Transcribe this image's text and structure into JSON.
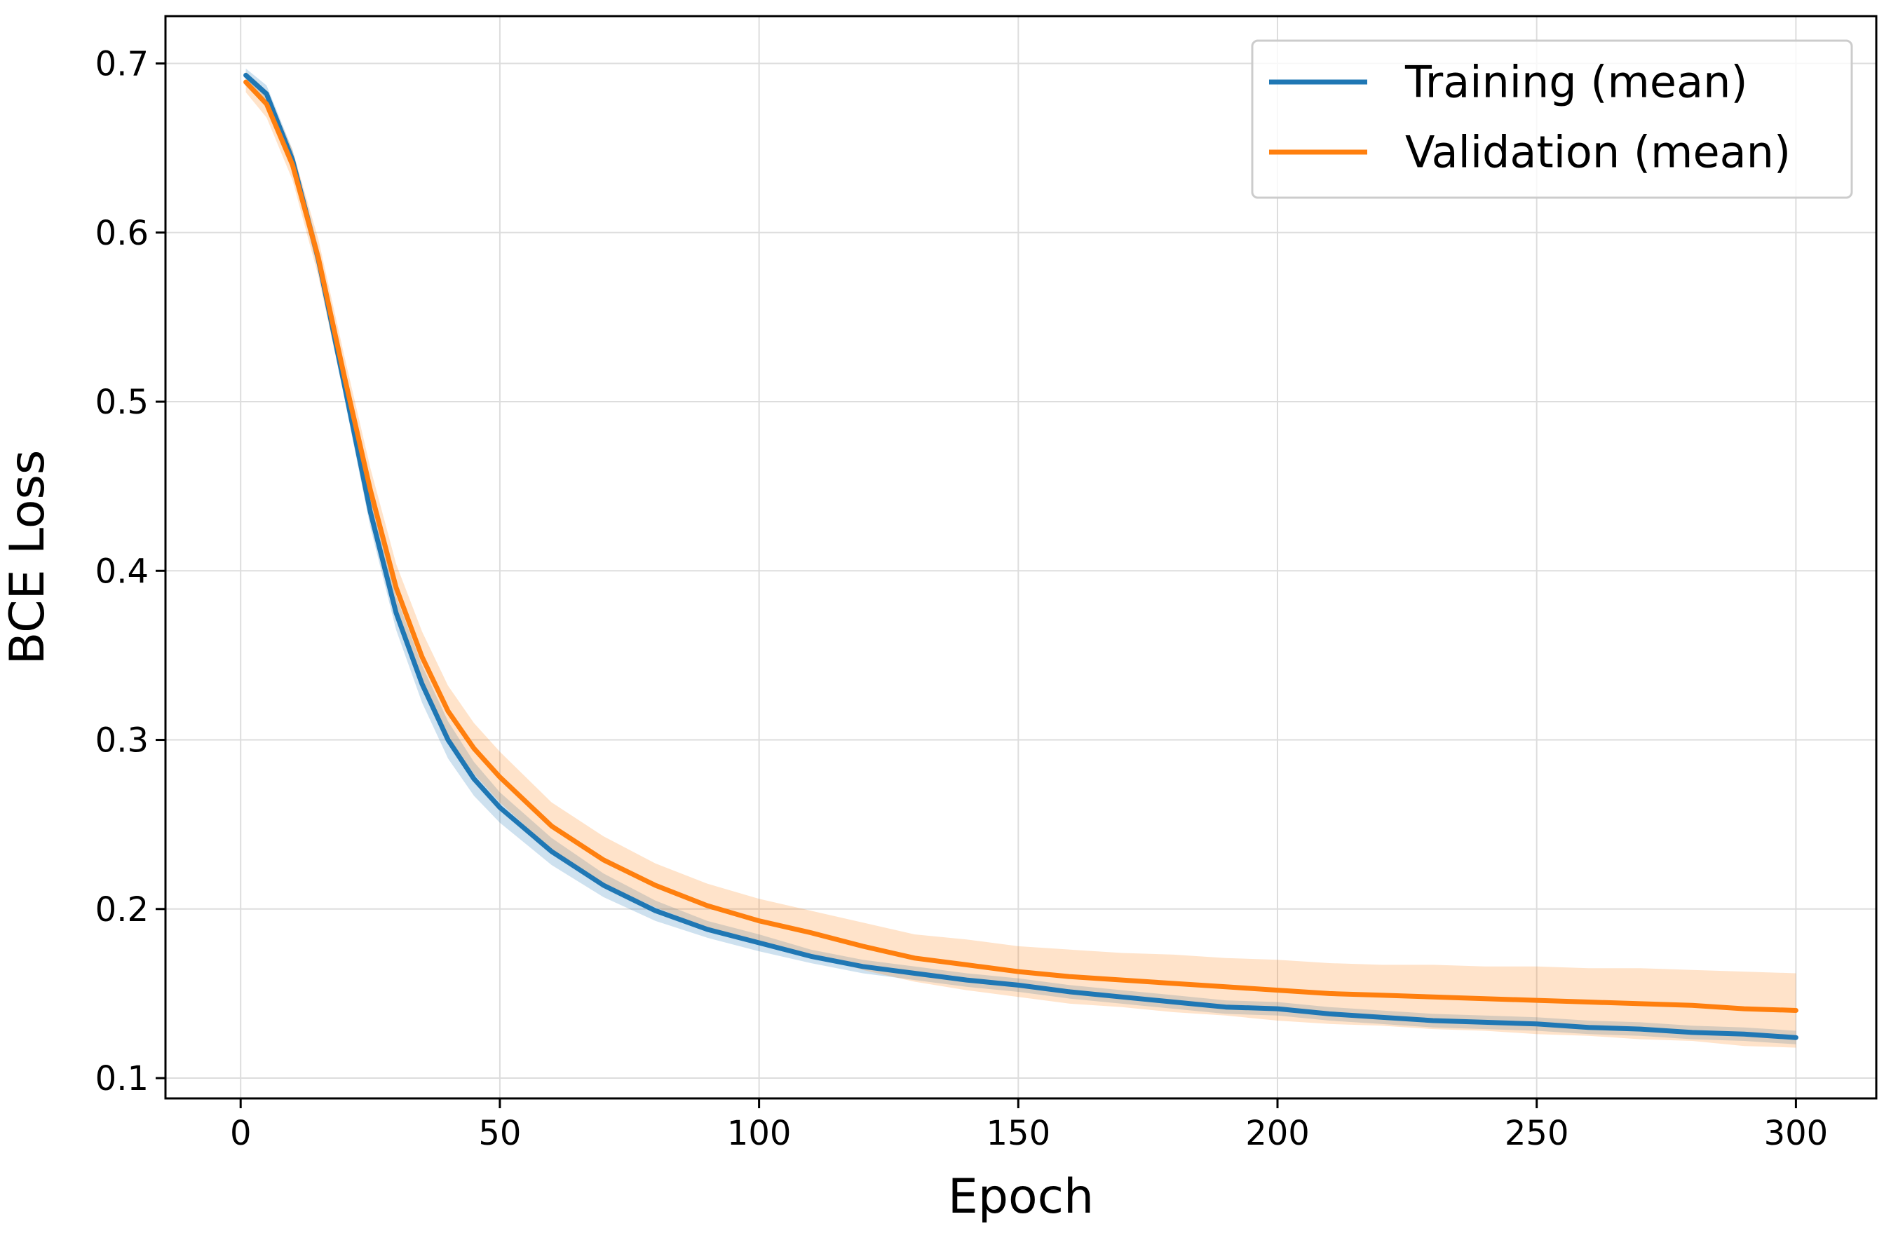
{
  "chart_data": {
    "type": "line",
    "title": "",
    "xlabel": "Epoch",
    "ylabel": "BCE Loss",
    "xlim": [
      -14.5,
      315.5
    ],
    "ylim": [
      0.088,
      0.728
    ],
    "xticks": [
      0,
      50,
      100,
      150,
      200,
      250,
      300
    ],
    "yticks": [
      0.1,
      0.2,
      0.3,
      0.4,
      0.5,
      0.6,
      0.7
    ],
    "grid": true,
    "legend_position": "top-right",
    "colors": {
      "training": "#1f77b4",
      "validation": "#ff7f0e",
      "grid": "#dddddd"
    },
    "series": [
      {
        "name": "Training (mean)",
        "color": "#1f77b4",
        "x": [
          1,
          5,
          10,
          15,
          20,
          25,
          30,
          35,
          40,
          45,
          50,
          60,
          70,
          80,
          90,
          100,
          110,
          120,
          130,
          140,
          150,
          160,
          170,
          180,
          190,
          200,
          210,
          220,
          230,
          240,
          250,
          260,
          270,
          280,
          290,
          300
        ],
        "values": [
          0.693,
          0.682,
          0.643,
          0.584,
          0.51,
          0.435,
          0.375,
          0.333,
          0.3,
          0.277,
          0.26,
          0.234,
          0.214,
          0.199,
          0.188,
          0.18,
          0.172,
          0.166,
          0.162,
          0.158,
          0.155,
          0.151,
          0.148,
          0.145,
          0.142,
          0.141,
          0.138,
          0.136,
          0.134,
          0.133,
          0.132,
          0.13,
          0.129,
          0.127,
          0.126,
          0.124
        ],
        "band": [
          0.004,
          0.005,
          0.006,
          0.007,
          0.008,
          0.009,
          0.01,
          0.011,
          0.011,
          0.01,
          0.009,
          0.008,
          0.007,
          0.006,
          0.005,
          0.005,
          0.004,
          0.004,
          0.004,
          0.004,
          0.004,
          0.004,
          0.004,
          0.004,
          0.004,
          0.004,
          0.004,
          0.004,
          0.004,
          0.004,
          0.004,
          0.004,
          0.004,
          0.004,
          0.004,
          0.004
        ]
      },
      {
        "name": "Validation (mean)",
        "color": "#ff7f0e",
        "x": [
          1,
          5,
          10,
          15,
          20,
          25,
          30,
          35,
          40,
          45,
          50,
          60,
          70,
          80,
          90,
          100,
          110,
          120,
          130,
          140,
          150,
          160,
          170,
          180,
          190,
          200,
          210,
          220,
          230,
          240,
          250,
          260,
          270,
          280,
          290,
          300
        ],
        "values": [
          0.689,
          0.676,
          0.64,
          0.585,
          0.515,
          0.448,
          0.39,
          0.349,
          0.317,
          0.295,
          0.278,
          0.249,
          0.229,
          0.214,
          0.202,
          0.193,
          0.186,
          0.178,
          0.171,
          0.167,
          0.163,
          0.16,
          0.158,
          0.156,
          0.154,
          0.152,
          0.15,
          0.149,
          0.148,
          0.147,
          0.146,
          0.145,
          0.144,
          0.143,
          0.141,
          0.14
        ],
        "band": [
          0.006,
          0.008,
          0.009,
          0.011,
          0.012,
          0.013,
          0.014,
          0.015,
          0.015,
          0.015,
          0.015,
          0.014,
          0.014,
          0.013,
          0.013,
          0.013,
          0.013,
          0.014,
          0.014,
          0.015,
          0.015,
          0.016,
          0.016,
          0.017,
          0.017,
          0.018,
          0.018,
          0.018,
          0.019,
          0.019,
          0.02,
          0.02,
          0.021,
          0.021,
          0.022,
          0.022
        ]
      }
    ]
  }
}
